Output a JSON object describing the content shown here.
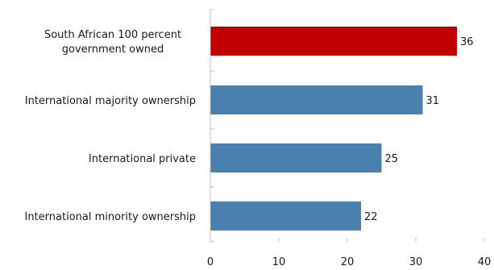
{
  "chart_data": {
    "type": "bar",
    "orientation": "horizontal",
    "categories": [
      [
        "South African 100 percent",
        "government owned"
      ],
      [
        "International majority ownership"
      ],
      [
        "International private"
      ],
      [
        "International minority ownership"
      ]
    ],
    "values": [
      36,
      31,
      25,
      22
    ],
    "bar_colors": [
      "#c00000",
      "#4a7fae",
      "#4a7fae",
      "#4a7fae"
    ],
    "xlim": [
      0,
      40
    ],
    "xticks": [
      "0",
      "10",
      "20",
      "30",
      "40"
    ],
    "grid": false,
    "title": ""
  }
}
